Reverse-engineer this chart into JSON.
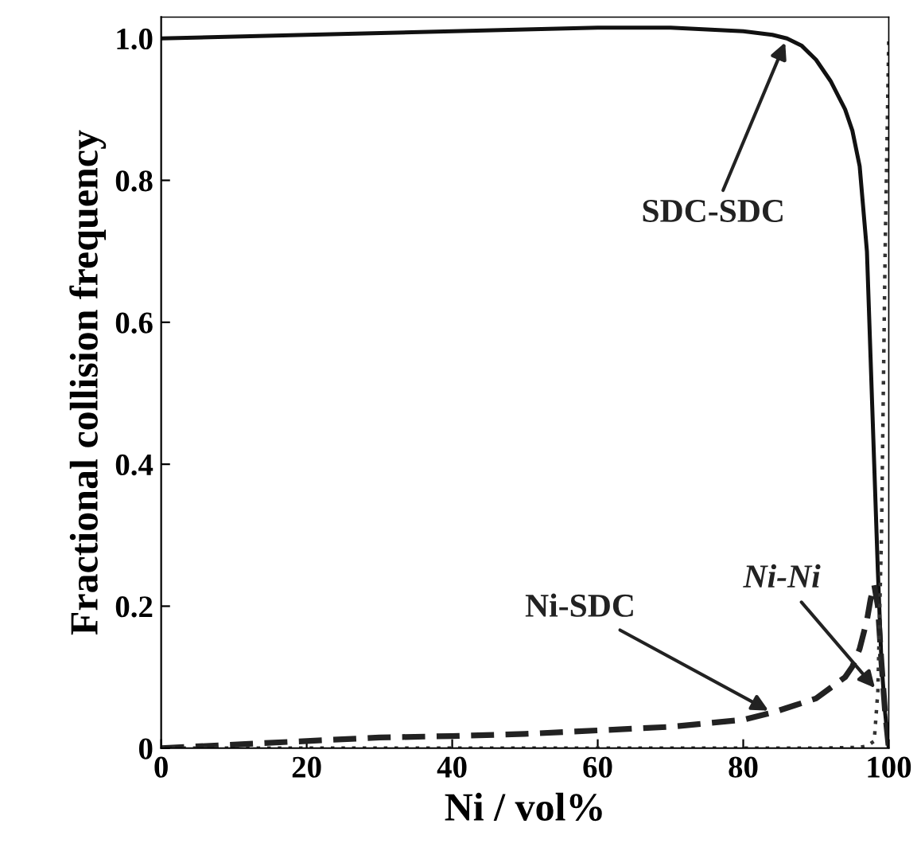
{
  "chart_data": {
    "type": "line",
    "xlabel": "Ni / vol%",
    "ylabel": "Fractional collision frequency",
    "xlim": [
      0,
      100
    ],
    "ylim": [
      0,
      1.03
    ],
    "xticks": [
      0,
      20,
      40,
      60,
      80,
      100
    ],
    "yticks": [
      0,
      0.2,
      0.4,
      0.6,
      0.8,
      {
        "value": 1,
        "label": "1.0"
      }
    ],
    "grid": false,
    "legend": false,
    "marker": "none",
    "series": [
      {
        "color": "#111111",
        "line_style": "solid",
        "x": [
          0,
          20,
          40,
          60,
          70,
          80,
          84,
          86,
          88,
          90,
          92,
          94,
          95,
          96,
          97,
          97.5,
          98,
          98.5,
          99,
          99.5,
          100
        ],
        "values": [
          1.0,
          1.005,
          1.01,
          1.015,
          1.015,
          1.01,
          1.005,
          1.0,
          0.99,
          0.97,
          0.94,
          0.9,
          0.87,
          0.82,
          0.7,
          0.55,
          0.4,
          0.25,
          0.12,
          0.05,
          0
        ]
      },
      {
        "color": "#222222",
        "line_style": "dashed",
        "x": [
          0,
          10,
          20,
          30,
          40,
          50,
          60,
          70,
          80,
          84,
          87,
          90,
          92,
          94,
          95,
          96,
          97,
          97.5,
          98,
          98.5,
          99,
          99.5,
          100
        ],
        "values": [
          0,
          0.005,
          0.01,
          0.015,
          0.017,
          0.02,
          0.025,
          0.03,
          0.04,
          0.05,
          0.06,
          0.07,
          0.085,
          0.1,
          0.115,
          0.14,
          0.18,
          0.21,
          0.23,
          0.2,
          0.12,
          0.05,
          0
        ]
      },
      {
        "color": "#333333",
        "line_style": "dotted",
        "x": [
          0,
          50,
          90,
          96,
          97,
          98,
          98.5,
          99,
          99.5,
          100
        ],
        "values": [
          0,
          0,
          0,
          0.001,
          0.003,
          0.01,
          0.08,
          0.3,
          0.7,
          1.0
        ]
      }
    ],
    "annotations": [
      {
        "text": "SDC-SDC",
        "x": 86,
        "y": 1.0
      },
      {
        "text": "Ni-SDC",
        "x": 84,
        "y": 0.05
      },
      {
        "text": "Ni-Ni",
        "x": 98.5,
        "y": 0.08
      }
    ]
  }
}
